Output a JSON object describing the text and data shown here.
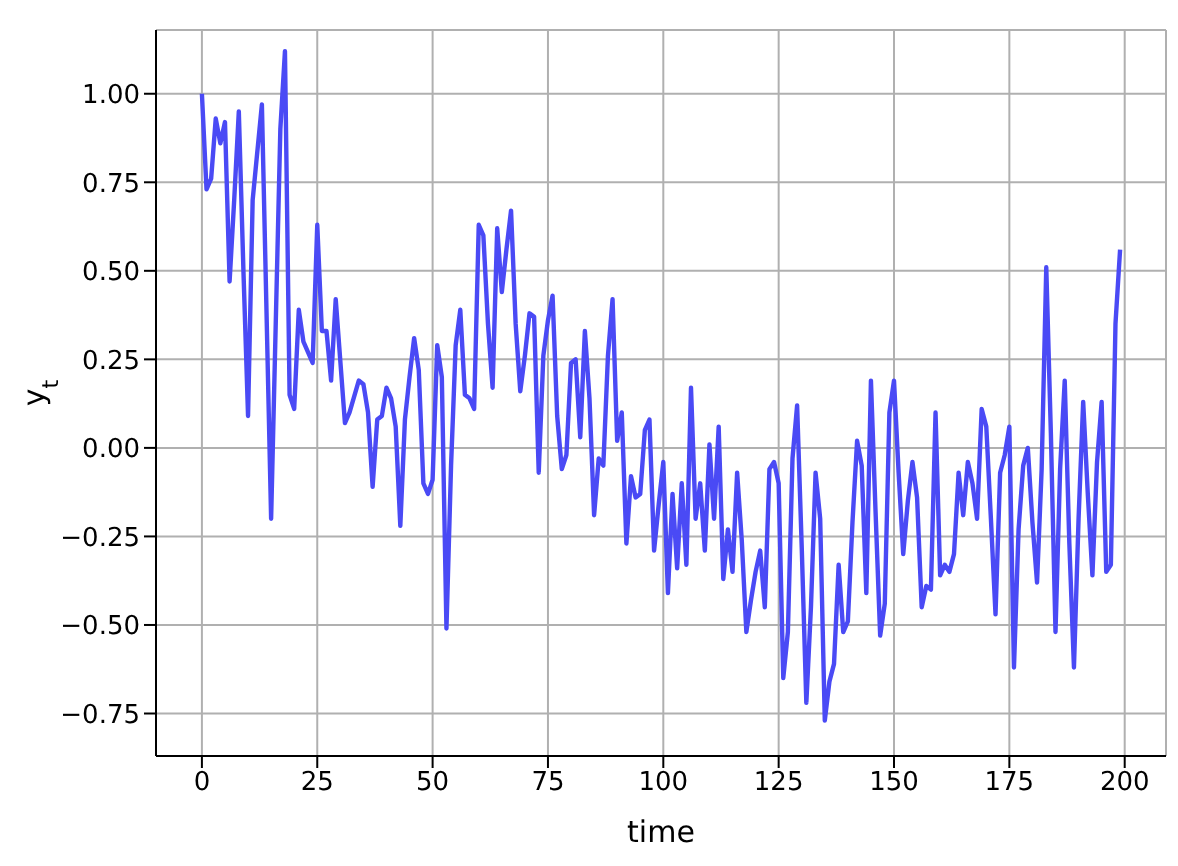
{
  "chart_data": {
    "type": "line",
    "xlabel": "time",
    "ylabel": "y$_{t}$",
    "x": [
      0,
      1,
      2,
      3,
      4,
      5,
      6,
      7,
      8,
      9,
      10,
      11,
      13,
      15,
      17,
      18,
      19,
      20,
      21,
      22,
      24,
      25,
      26,
      27,
      28,
      29,
      31,
      32,
      34,
      35,
      36,
      37,
      38,
      39,
      40,
      41,
      42,
      43,
      44,
      45,
      46,
      47,
      48,
      49,
      50,
      51,
      52,
      53,
      54,
      55,
      56,
      57,
      58,
      59,
      60,
      61,
      62,
      63,
      64,
      65,
      66,
      67,
      68,
      69,
      70,
      71,
      72,
      73,
      74,
      75,
      76,
      77,
      78,
      79,
      80,
      81,
      82,
      83,
      84,
      85,
      86,
      87,
      88,
      89,
      90,
      91,
      92,
      93,
      94,
      95,
      96,
      97,
      98,
      99,
      100,
      101,
      102,
      103,
      104,
      105,
      106,
      107,
      108,
      109,
      110,
      111,
      112,
      113,
      114,
      115,
      116,
      117,
      118,
      119,
      120,
      121,
      122,
      123,
      124,
      125,
      126,
      127,
      128,
      129,
      130,
      131,
      132,
      133,
      134,
      135,
      136,
      137,
      138,
      139,
      140,
      141,
      142,
      143,
      144,
      145,
      146,
      147,
      148,
      149,
      150,
      151,
      152,
      153,
      154,
      155,
      156,
      157,
      158,
      159,
      160,
      161,
      162,
      163,
      164,
      165,
      166,
      167,
      168,
      169,
      170,
      171,
      172,
      173,
      174,
      175,
      176,
      177,
      178,
      179,
      180,
      181,
      182,
      183,
      184,
      185,
      186,
      187,
      188,
      189,
      190,
      191,
      192,
      193,
      194,
      195,
      196,
      197,
      198,
      199
    ],
    "series": [
      {
        "color": "#4a4af5",
        "values": [
          1.0,
          0.73,
          0.76,
          0.93,
          0.86,
          0.92,
          0.47,
          0.7,
          0.95,
          0.5,
          0.09,
          0.7,
          0.97,
          -0.2,
          0.9,
          1.12,
          0.15,
          0.11,
          0.39,
          0.3,
          0.24,
          0.63,
          0.33,
          0.33,
          0.19,
          0.42,
          0.07,
          0.1,
          0.19,
          0.18,
          0.1,
          -0.11,
          0.08,
          0.09,
          0.17,
          0.14,
          0.06,
          -0.22,
          0.08,
          0.2,
          0.31,
          0.22,
          -0.1,
          -0.13,
          -0.09,
          0.29,
          0.2,
          -0.51,
          -0.05,
          0.29,
          0.39,
          0.15,
          0.14,
          0.11,
          0.63,
          0.6,
          0.35,
          0.17,
          0.62,
          0.44,
          0.56,
          0.67,
          0.35,
          0.16,
          0.26,
          0.38,
          0.37,
          -0.07,
          0.26,
          0.36,
          0.43,
          0.09,
          -0.06,
          -0.02,
          0.24,
          0.25,
          0.03,
          0.33,
          0.14,
          -0.19,
          -0.03,
          -0.05,
          0.26,
          0.42,
          0.02,
          0.1,
          -0.27,
          -0.08,
          -0.14,
          -0.13,
          0.05,
          0.08,
          -0.29,
          -0.16,
          -0.04,
          -0.41,
          -0.13,
          -0.34,
          -0.1,
          -0.33,
          0.17,
          -0.2,
          -0.1,
          -0.29,
          0.01,
          -0.2,
          0.06,
          -0.37,
          -0.23,
          -0.35,
          -0.07,
          -0.26,
          -0.52,
          -0.43,
          -0.35,
          -0.29,
          -0.45,
          -0.06,
          -0.04,
          -0.1,
          -0.65,
          -0.52,
          -0.03,
          0.12,
          -0.28,
          -0.72,
          -0.45,
          -0.07,
          -0.2,
          -0.77,
          -0.66,
          -0.61,
          -0.33,
          -0.52,
          -0.49,
          -0.21,
          0.02,
          -0.05,
          -0.41,
          0.19,
          -0.18,
          -0.53,
          -0.44,
          0.1,
          0.19,
          -0.07,
          -0.3,
          -0.15,
          -0.04,
          -0.14,
          -0.45,
          -0.39,
          -0.4,
          0.1,
          -0.36,
          -0.33,
          -0.35,
          -0.3,
          -0.07,
          -0.19,
          -0.04,
          -0.1,
          -0.2,
          0.11,
          0.06,
          -0.2,
          -0.47,
          -0.07,
          -0.02,
          0.06,
          -0.62,
          -0.23,
          -0.05,
          0.0,
          -0.21,
          -0.38,
          -0.06,
          0.51,
          0.04,
          -0.52,
          -0.06,
          0.19,
          -0.27,
          -0.62,
          -0.2,
          0.13,
          -0.13,
          -0.36,
          -0.04,
          0.13,
          -0.35,
          -0.33,
          0.35,
          0.56
        ]
      }
    ],
    "xlim": [
      -9.95,
      208.95
    ],
    "xticks": [
      0,
      25,
      50,
      75,
      100,
      125,
      150,
      175,
      200
    ],
    "ylim": [
      -0.87,
      1.18
    ],
    "yticks": [
      {
        "value": -0.75,
        "label": "−0.75"
      },
      {
        "value": -0.5,
        "label": "−0.50"
      },
      {
        "value": -0.25,
        "label": "−0.25"
      },
      {
        "value": 0,
        "label": "0.00"
      },
      {
        "value": 0.25,
        "label": "0.25"
      },
      {
        "value": 0.5,
        "label": "0.50"
      },
      {
        "value": 0.75,
        "label": "0.75"
      },
      {
        "value": 1,
        "label": "1.00"
      }
    ],
    "grid": true,
    "line_style": "solid"
  }
}
